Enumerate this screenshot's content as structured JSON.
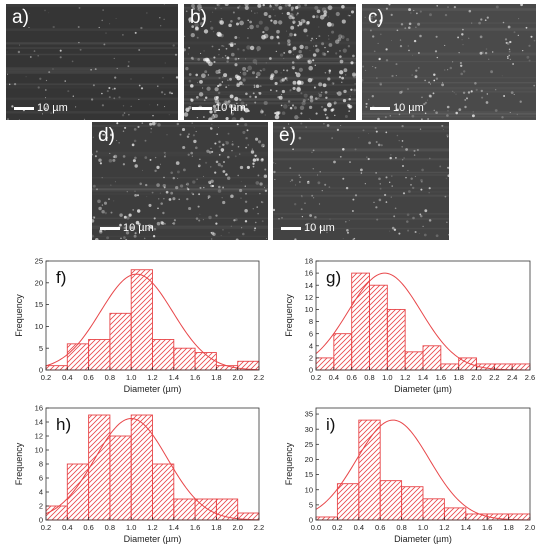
{
  "micrographs": [
    {
      "label": "a)",
      "scale": "10 µm",
      "tone": "#353535",
      "speckle": 0.15
    },
    {
      "label": "b)",
      "scale": "10 µm",
      "tone": "#3a3a3a",
      "speckle": 1.0
    },
    {
      "label": "c)",
      "scale": "10 µm",
      "tone": "#4a4a4a",
      "speckle": 0.35
    },
    {
      "label": "d)",
      "scale": "10 µm",
      "tone": "#3d3d3d",
      "speckle": 0.6
    },
    {
      "label": "e)",
      "scale": "10 µm",
      "tone": "#434343",
      "speckle": 0.3
    }
  ],
  "colors": {
    "bars": "#e8474a",
    "curve": "#e8474a",
    "axes": "#333333"
  },
  "chart_data": [
    {
      "type": "bar",
      "panel": "f)",
      "xlabel": "Diameter (µm)",
      "ylabel": "Frequency",
      "xlim": [
        0.2,
        2.2
      ],
      "ylim": [
        0,
        25
      ],
      "xticks": [
        "0.2",
        "0.4",
        "0.6",
        "0.8",
        "1.0",
        "1.2",
        "1.4",
        "1.6",
        "1.8",
        "2.0",
        "2.2"
      ],
      "yticks": [
        "0",
        "5",
        "10",
        "15",
        "20",
        "25"
      ],
      "bin_edges": [
        0.2,
        0.4,
        0.6,
        0.8,
        1.0,
        1.2,
        1.4,
        1.6,
        1.8,
        2.0,
        2.2
      ],
      "values": [
        1,
        6,
        7,
        13,
        23,
        7,
        5,
        4,
        1,
        2
      ],
      "fit": {
        "type": "normal",
        "mean": 1.05,
        "peak": 22
      }
    },
    {
      "type": "bar",
      "panel": "g)",
      "xlabel": "Diameter (µm)",
      "ylabel": "Frequency",
      "xlim": [
        0.2,
        2.6
      ],
      "ylim": [
        0,
        18
      ],
      "xticks": [
        "0.2",
        "0.4",
        "0.6",
        "0.8",
        "1.0",
        "1.2",
        "1.4",
        "1.6",
        "1.8",
        "2.0",
        "2.2",
        "2.4",
        "2.6"
      ],
      "yticks": [
        "0",
        "2",
        "4",
        "6",
        "8",
        "10",
        "12",
        "14",
        "16",
        "18"
      ],
      "bin_edges": [
        0.2,
        0.4,
        0.6,
        0.8,
        1.0,
        1.2,
        1.4,
        1.6,
        1.8,
        2.0,
        2.2,
        2.4,
        2.6
      ],
      "values": [
        2,
        6,
        16,
        14,
        10,
        3,
        4,
        1,
        2,
        1,
        1,
        1
      ],
      "fit": {
        "type": "normal",
        "mean": 0.97,
        "peak": 16
      }
    },
    {
      "type": "bar",
      "panel": "h)",
      "xlabel": "Diameter (µm)",
      "ylabel": "Frequency",
      "xlim": [
        0.2,
        2.2
      ],
      "ylim": [
        0,
        16
      ],
      "xticks": [
        "0.2",
        "0.4",
        "0.6",
        "0.8",
        "1.0",
        "1.2",
        "1.4",
        "1.6",
        "1.8",
        "2.0",
        "2.2"
      ],
      "yticks": [
        "0",
        "2",
        "4",
        "6",
        "8",
        "10",
        "12",
        "14",
        "16"
      ],
      "bin_edges": [
        0.2,
        0.4,
        0.6,
        0.8,
        1.0,
        1.2,
        1.4,
        1.6,
        1.8,
        2.0,
        2.2
      ],
      "values": [
        2,
        8,
        15,
        12,
        15,
        8,
        3,
        3,
        3,
        1
      ],
      "fit": {
        "type": "normal",
        "mean": 1.0,
        "peak": 14.5
      }
    },
    {
      "type": "bar",
      "panel": "i)",
      "xlabel": "Diameter (µm)",
      "ylabel": "Frequency",
      "xlim": [
        0.0,
        2.0
      ],
      "ylim": [
        0,
        37
      ],
      "xticks": [
        "0.0",
        "0.2",
        "0.4",
        "0.6",
        "0.8",
        "1.0",
        "1.2",
        "1.4",
        "1.6",
        "1.8",
        "2.0"
      ],
      "yticks": [
        "0",
        "5",
        "10",
        "15",
        "20",
        "25",
        "30",
        "35"
      ],
      "bin_edges": [
        0.0,
        0.2,
        0.4,
        0.6,
        0.8,
        1.0,
        1.2,
        1.4,
        1.6,
        1.8,
        2.0
      ],
      "values": [
        1,
        12,
        33,
        13,
        11,
        7,
        4,
        2,
        2,
        2
      ],
      "fit": {
        "type": "normal",
        "mean": 0.72,
        "peak": 33
      }
    }
  ]
}
